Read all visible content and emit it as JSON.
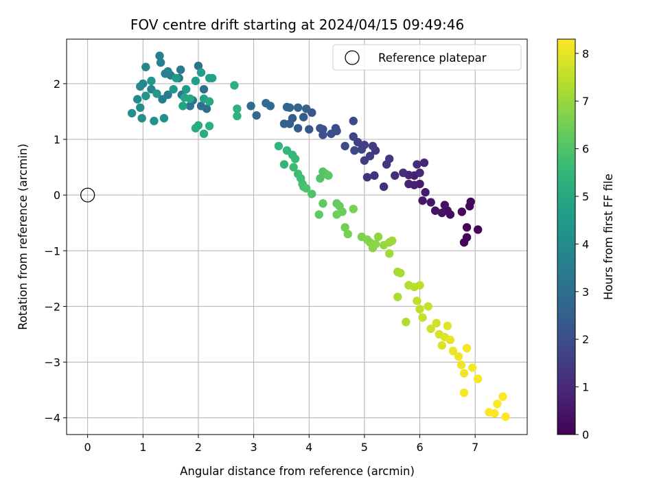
{
  "chart_data": {
    "type": "scatter",
    "title": "FOV centre drift starting at 2024/04/15 09:49:46",
    "xlabel": "Angular distance from reference (arcmin)",
    "ylabel": "Rotation from reference (arcmin)",
    "xlim": [
      -0.38,
      7.94
    ],
    "ylim": [
      -4.3,
      2.8
    ],
    "xticks": [
      0,
      1,
      2,
      3,
      4,
      5,
      6,
      7
    ],
    "yticks": [
      2,
      1,
      0,
      -1,
      -2,
      -3,
      -4
    ],
    "grid": true,
    "legend": {
      "placement": "top-right",
      "entries": [
        {
          "label": "Reference platepar",
          "marker": "open-circle"
        }
      ]
    },
    "reference_point": {
      "x": 0,
      "y": 0
    },
    "colorbar": {
      "label": "Hours from first FF file",
      "colormap": "viridis",
      "range": [
        0,
        8.3
      ],
      "ticks": [
        0,
        1,
        2,
        3,
        4,
        5,
        6,
        7,
        8
      ],
      "colors": [
        "#440154",
        "#482878",
        "#3e4989",
        "#31688e",
        "#26828e",
        "#1f9e89",
        "#35b779",
        "#6ece58",
        "#b5de2b",
        "#fde725"
      ]
    },
    "series": [
      {
        "color_by": "hours",
        "points": [
          [
            6.8,
            -0.85,
            0.05
          ],
          [
            6.85,
            -0.76,
            0.08
          ],
          [
            7.05,
            -0.62,
            0.1
          ],
          [
            6.85,
            -0.58,
            0.12
          ],
          [
            6.9,
            -0.2,
            0.15
          ],
          [
            6.92,
            -0.12,
            0.18
          ],
          [
            6.76,
            -0.3,
            0.22
          ],
          [
            6.55,
            -0.35,
            0.25
          ],
          [
            6.5,
            -0.28,
            0.3
          ],
          [
            6.45,
            -0.18,
            0.35
          ],
          [
            6.4,
            -0.32,
            0.4
          ],
          [
            6.28,
            -0.28,
            0.45
          ],
          [
            6.2,
            -0.13,
            0.5
          ],
          [
            6.05,
            -0.1,
            0.55
          ],
          [
            6.1,
            0.05,
            0.6
          ],
          [
            6.0,
            0.2,
            0.65
          ],
          [
            5.9,
            0.35,
            0.7
          ],
          [
            5.9,
            0.18,
            0.75
          ],
          [
            5.8,
            0.2,
            0.8
          ],
          [
            5.8,
            0.36,
            0.85
          ],
          [
            6.08,
            0.58,
            0.9
          ],
          [
            6.0,
            0.4,
            0.95
          ],
          [
            5.95,
            0.55,
            1.0
          ],
          [
            5.7,
            0.4,
            1.05
          ],
          [
            5.55,
            0.35,
            1.1
          ],
          [
            5.35,
            0.15,
            1.15
          ],
          [
            5.18,
            0.35,
            1.2
          ],
          [
            5.05,
            0.32,
            1.25
          ],
          [
            5.45,
            0.65,
            1.3
          ],
          [
            5.4,
            0.55,
            1.35
          ],
          [
            5.2,
            0.8,
            1.4
          ],
          [
            5.1,
            0.7,
            1.45
          ],
          [
            5.0,
            0.62,
            1.5
          ],
          [
            5.15,
            0.88,
            1.55
          ],
          [
            5.0,
            0.9,
            1.6
          ],
          [
            4.88,
            0.95,
            1.65
          ],
          [
            4.95,
            0.82,
            1.7
          ],
          [
            4.8,
            1.05,
            1.75
          ],
          [
            4.82,
            0.8,
            1.8
          ],
          [
            4.8,
            1.33,
            1.85
          ],
          [
            4.65,
            0.88,
            1.9
          ],
          [
            4.5,
            1.15,
            1.95
          ],
          [
            4.48,
            1.2,
            2.0
          ],
          [
            4.4,
            1.1,
            2.05
          ],
          [
            4.25,
            1.18,
            2.1
          ],
          [
            4.25,
            1.08,
            2.15
          ],
          [
            4.2,
            1.2,
            2.2
          ],
          [
            4.05,
            1.48,
            2.25
          ],
          [
            4.0,
            1.18,
            2.3
          ],
          [
            3.9,
            1.4,
            2.35
          ],
          [
            3.8,
            1.2,
            2.4
          ],
          [
            3.7,
            1.38,
            2.45
          ],
          [
            3.65,
            1.28,
            2.5
          ],
          [
            3.55,
            1.28,
            2.55
          ],
          [
            3.95,
            1.55,
            2.6
          ],
          [
            3.8,
            1.57,
            2.65
          ],
          [
            3.65,
            1.57,
            2.7
          ],
          [
            3.6,
            1.58,
            2.75
          ],
          [
            3.05,
            1.43,
            2.8
          ],
          [
            3.3,
            1.6,
            2.85
          ],
          [
            3.22,
            1.65,
            2.9
          ],
          [
            2.95,
            1.6,
            2.95
          ],
          [
            2.15,
            1.55,
            3.0
          ],
          [
            2.05,
            1.6,
            3.05
          ],
          [
            2.1,
            1.9,
            3.1
          ],
          [
            2.0,
            2.32,
            3.15
          ],
          [
            1.9,
            1.7,
            3.2
          ],
          [
            1.85,
            1.6,
            3.25
          ],
          [
            1.7,
            1.8,
            3.3
          ],
          [
            1.65,
            2.1,
            3.35
          ],
          [
            1.68,
            2.25,
            3.4
          ],
          [
            1.5,
            2.15,
            3.45
          ],
          [
            1.45,
            1.8,
            3.5
          ],
          [
            1.35,
            1.72,
            3.55
          ],
          [
            1.3,
            2.5,
            3.6
          ],
          [
            1.32,
            2.38,
            3.65
          ],
          [
            1.4,
            2.18,
            3.7
          ],
          [
            1.45,
            2.22,
            3.75
          ],
          [
            1.15,
            1.9,
            3.8
          ],
          [
            1.05,
            2.3,
            3.85
          ],
          [
            1.0,
            2.0,
            3.9
          ],
          [
            0.95,
            1.95,
            3.95
          ],
          [
            0.9,
            1.72,
            4.0
          ],
          [
            0.95,
            1.57,
            4.05
          ],
          [
            0.8,
            1.47,
            4.1
          ],
          [
            0.98,
            1.38,
            4.15
          ],
          [
            1.2,
            1.33,
            4.2
          ],
          [
            1.38,
            1.38,
            4.25
          ],
          [
            1.05,
            1.78,
            4.3
          ],
          [
            1.15,
            2.05,
            4.35
          ],
          [
            1.25,
            1.82,
            4.4
          ],
          [
            1.55,
            1.9,
            4.45
          ],
          [
            1.6,
            2.1,
            4.5
          ],
          [
            1.78,
            1.9,
            4.55
          ],
          [
            1.95,
            2.05,
            4.6
          ],
          [
            2.05,
            2.2,
            4.65
          ],
          [
            2.2,
            2.1,
            4.7
          ],
          [
            2.25,
            2.1,
            4.75
          ],
          [
            2.1,
            1.73,
            4.8
          ],
          [
            1.72,
            1.6,
            4.85
          ],
          [
            1.75,
            1.75,
            4.9
          ],
          [
            1.85,
            1.73,
            4.95
          ],
          [
            2.2,
            1.68,
            5.0
          ],
          [
            1.95,
            1.2,
            5.05
          ],
          [
            2.0,
            1.25,
            5.1
          ],
          [
            2.1,
            1.1,
            5.15
          ],
          [
            2.2,
            1.24,
            5.2
          ],
          [
            2.65,
            1.97,
            5.25
          ],
          [
            2.7,
            1.55,
            5.3
          ],
          [
            2.7,
            1.42,
            5.35
          ],
          [
            3.45,
            0.88,
            5.4
          ],
          [
            3.55,
            0.55,
            5.45
          ],
          [
            3.6,
            0.8,
            5.5
          ],
          [
            3.7,
            0.72,
            5.55
          ],
          [
            3.75,
            0.65,
            5.6
          ],
          [
            3.72,
            0.5,
            5.65
          ],
          [
            3.8,
            0.38,
            5.7
          ],
          [
            3.85,
            0.3,
            5.75
          ],
          [
            3.88,
            0.2,
            5.8
          ],
          [
            3.9,
            0.15,
            5.85
          ],
          [
            3.95,
            0.12,
            5.9
          ],
          [
            4.05,
            0.02,
            5.95
          ],
          [
            4.2,
            0.3,
            6.0
          ],
          [
            4.25,
            0.42,
            6.05
          ],
          [
            4.3,
            0.38,
            6.1
          ],
          [
            4.35,
            0.35,
            6.15
          ],
          [
            4.18,
            -0.35,
            6.2
          ],
          [
            4.25,
            -0.15,
            6.25
          ],
          [
            4.5,
            -0.15,
            6.3
          ],
          [
            4.55,
            -0.2,
            6.35
          ],
          [
            4.6,
            -0.3,
            6.4
          ],
          [
            4.5,
            -0.35,
            6.45
          ],
          [
            4.65,
            -0.58,
            6.5
          ],
          [
            4.7,
            -0.7,
            6.55
          ],
          [
            4.8,
            -0.25,
            6.6
          ],
          [
            4.95,
            -0.75,
            6.65
          ],
          [
            5.05,
            -0.8,
            6.7
          ],
          [
            5.1,
            -0.85,
            6.75
          ],
          [
            5.15,
            -0.95,
            6.8
          ],
          [
            5.2,
            -0.88,
            6.85
          ],
          [
            5.25,
            -0.75,
            6.9
          ],
          [
            5.35,
            -0.9,
            6.95
          ],
          [
            5.45,
            -0.85,
            7.0
          ],
          [
            5.5,
            -0.82,
            7.05
          ],
          [
            5.45,
            -1.05,
            7.1
          ],
          [
            5.6,
            -1.38,
            7.15
          ],
          [
            5.65,
            -1.4,
            7.2
          ],
          [
            5.6,
            -1.83,
            7.25
          ],
          [
            5.75,
            -2.28,
            7.3
          ],
          [
            5.8,
            -1.62,
            7.35
          ],
          [
            5.9,
            -1.65,
            7.4
          ],
          [
            6.0,
            -1.62,
            7.45
          ],
          [
            5.95,
            -1.9,
            7.5
          ],
          [
            6.0,
            -2.05,
            7.55
          ],
          [
            6.05,
            -2.2,
            7.6
          ],
          [
            6.15,
            -2.0,
            7.65
          ],
          [
            6.2,
            -2.4,
            7.7
          ],
          [
            6.3,
            -2.3,
            7.75
          ],
          [
            6.35,
            -2.5,
            7.8
          ],
          [
            6.4,
            -2.7,
            7.85
          ],
          [
            6.45,
            -2.55,
            7.9
          ],
          [
            6.5,
            -2.35,
            7.95
          ],
          [
            6.55,
            -2.6,
            8.0
          ],
          [
            6.6,
            -2.8,
            8.05
          ],
          [
            6.7,
            -2.9,
            8.1
          ],
          [
            6.75,
            -3.05,
            8.12
          ],
          [
            6.8,
            -3.2,
            8.15
          ],
          [
            6.85,
            -2.75,
            8.18
          ],
          [
            6.95,
            -3.1,
            8.2
          ],
          [
            7.05,
            -3.3,
            8.22
          ],
          [
            6.8,
            -3.55,
            8.24
          ],
          [
            7.25,
            -3.9,
            8.26
          ],
          [
            7.4,
            -3.75,
            8.27
          ],
          [
            7.35,
            -3.92,
            8.28
          ],
          [
            7.5,
            -3.62,
            8.29
          ],
          [
            7.55,
            -3.98,
            8.3
          ]
        ]
      }
    ]
  }
}
